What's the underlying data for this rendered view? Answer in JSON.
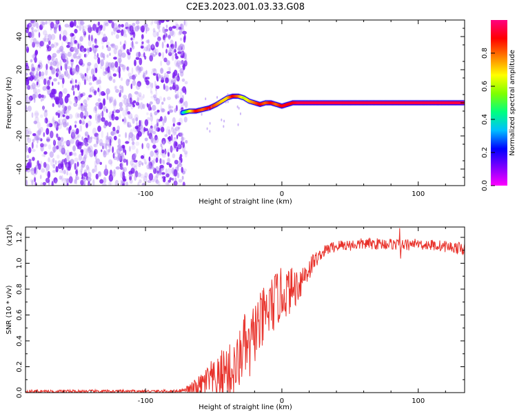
{
  "figure": {
    "title": "C2E3.2023.001.03.33.G08"
  },
  "chart_data": [
    {
      "type": "heatmap",
      "xlabel": "Height of straight line (km)",
      "ylabel": "Frequency (Hz)",
      "xlim": [
        -188,
        134
      ],
      "ylim": [
        -50,
        50
      ],
      "xticks": [
        -100,
        0,
        100
      ],
      "yticks": [
        -40,
        -20,
        0,
        20,
        40
      ],
      "grid": false,
      "colorbar": {
        "label": "Normalized spectral amplitude",
        "range": [
          0,
          1
        ],
        "ticks": [
          "0.0",
          "0.2",
          "0.4",
          "0.6",
          "0.8"
        ],
        "colormap": [
          "#ff00ff",
          "#7f00ff",
          "#0000ff",
          "#00bfff",
          "#00ff7f",
          "#7fff00",
          "#ffff00",
          "#ff8000",
          "#ff0000",
          "#ff0080"
        ]
      },
      "noise_region_x": [
        -188,
        -70
      ],
      "ridge": {
        "x": [
          -73,
          -68,
          -63,
          -58,
          -53,
          -48,
          -44,
          -40,
          -36,
          -32,
          -28,
          -24,
          -20,
          -16,
          -12,
          -8,
          -4,
          0,
          4,
          8,
          12,
          20,
          40,
          60,
          80,
          100,
          120,
          134
        ],
        "y": [
          -6,
          -5,
          -5,
          -4,
          -3,
          -1,
          1,
          3,
          4,
          4,
          3,
          1,
          0,
          -1,
          0,
          0,
          -1,
          -2,
          -1,
          0,
          0,
          0,
          0,
          0,
          0,
          0,
          0,
          0
        ],
        "amplitude": [
          0.3,
          0.6,
          0.9,
          0.8,
          0.9,
          0.8,
          0.7,
          0.7,
          0.9,
          0.8,
          0.6,
          0.7,
          0.8,
          0.9,
          0.8,
          0.9,
          0.8,
          0.9,
          0.9,
          0.9,
          0.95,
          0.95,
          0.95,
          0.95,
          0.95,
          0.95,
          0.95,
          0.95
        ]
      }
    },
    {
      "type": "line",
      "xlabel": "Height of straight line (km)",
      "ylabel": "SNR (10 * v/v)",
      "scale_label": "(x10",
      "scale_exponent": "4",
      "xlim": [
        -188,
        134
      ],
      "ylim": [
        0,
        1.28
      ],
      "xticks": [
        -100,
        0,
        100
      ],
      "yticks": [
        "0.0",
        "0.2",
        "0.4",
        "0.6",
        "0.8",
        "1.0",
        "1.2"
      ],
      "grid": false,
      "color": "#e8312a",
      "x": [
        -188,
        -160,
        -130,
        -100,
        -80,
        -70,
        -64,
        -60,
        -56,
        -52,
        -48,
        -44,
        -40,
        -36,
        -32,
        -28,
        -24,
        -20,
        -16,
        -12,
        -8,
        -4,
        0,
        4,
        8,
        12,
        16,
        20,
        24,
        28,
        32,
        36,
        40,
        44,
        50,
        60,
        70,
        80,
        90,
        100,
        110,
        120,
        128,
        134
      ],
      "y": [
        0.01,
        0.01,
        0.01,
        0.01,
        0.01,
        0.02,
        0.03,
        0.04,
        0.08,
        0.1,
        0.07,
        0.15,
        0.18,
        0.15,
        0.22,
        0.38,
        0.3,
        0.48,
        0.52,
        0.6,
        0.66,
        0.72,
        0.76,
        0.78,
        0.8,
        0.84,
        0.9,
        0.96,
        1.02,
        1.06,
        1.1,
        1.12,
        1.13,
        1.14,
        1.14,
        1.15,
        1.15,
        1.15,
        1.14,
        1.15,
        1.14,
        1.13,
        1.12,
        1.11
      ]
    }
  ]
}
